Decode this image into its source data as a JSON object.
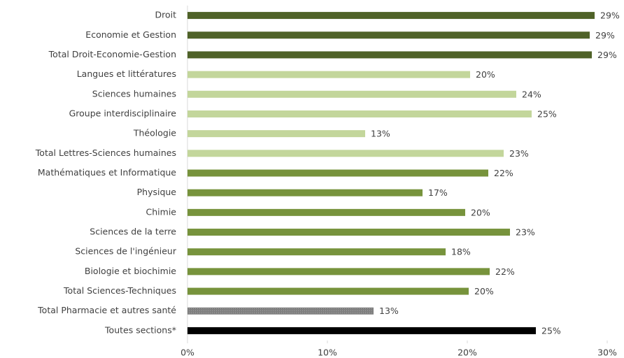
{
  "chart_data": {
    "type": "hbar",
    "categories": [
      "Droit",
      "Economie et Gestion",
      "Total Droit-Economie-Gestion",
      "Langues et littératures",
      "Sciences humaines",
      "Groupe interdisciplinaire",
      "Théologie",
      "Total Lettres-Sciences humaines",
      "Mathématiques et Informatique",
      "Physique",
      "Chimie",
      "Sciences de la terre",
      "Sciences de l'ingénieur",
      "Biologie et biochimie",
      "Total Sciences-Techniques",
      "Total Pharmacie et autres santé",
      "Toutes sections*"
    ],
    "values": [
      29.1,
      28.75,
      28.9,
      20.2,
      23.5,
      24.6,
      12.7,
      22.6,
      21.5,
      16.8,
      19.85,
      23.05,
      18.45,
      21.6,
      20.1,
      13.3,
      24.9
    ],
    "value_labels": [
      "29%",
      "29%",
      "29%",
      "20%",
      "24%",
      "25%",
      "13%",
      "23%",
      "22%",
      "17%",
      "20%",
      "23%",
      "18%",
      "22%",
      "20%",
      "13%",
      "25%"
    ],
    "colors": [
      "#4f6228",
      "#4f6228",
      "#4f6228",
      "#c3d69b",
      "#c3d69b",
      "#c3d69b",
      "#c3d69b",
      "#c3d69b",
      "#77933c",
      "#77933c",
      "#77933c",
      "#77933c",
      "#77933c",
      "#77933c",
      "#77933c",
      "#7f7f7f",
      "#000000"
    ],
    "xlim": [
      0,
      30
    ],
    "xticks": [
      {
        "value": 0,
        "label": "0%"
      },
      {
        "value": 10,
        "label": "10%"
      },
      {
        "value": 20,
        "label": "20%"
      },
      {
        "value": 30,
        "label": "30%"
      }
    ]
  }
}
